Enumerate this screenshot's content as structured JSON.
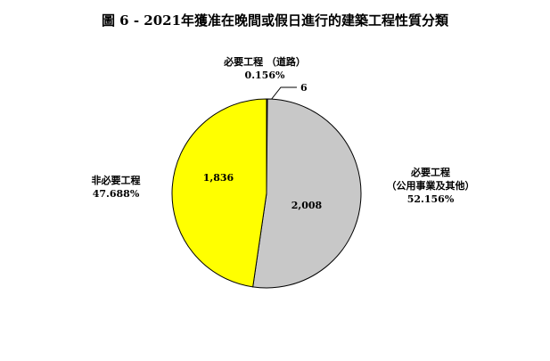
{
  "chart_data": {
    "type": "pie",
    "title": "圖 6 - 2021年獲准在晚間或假日進行的建築工程性質分類",
    "slices": [
      {
        "label": "必要工程 （道路）",
        "label_lines": [
          "必要工程 （道路）"
        ],
        "value": 6,
        "value_label": "6",
        "percent": "0.156%",
        "color": "#ffffff"
      },
      {
        "label": "必要工程（公用事業及其他）",
        "label_lines": [
          "必要工程",
          "（公用事業及其他）"
        ],
        "value": 2008,
        "value_label": "2,008",
        "percent": "52.156%",
        "color": "#c8c8c8"
      },
      {
        "label": "非必要工程",
        "label_lines": [
          "非必要工程"
        ],
        "value": 1836,
        "value_label": "1,836",
        "percent": "47.688%",
        "color": "#ffff00"
      }
    ],
    "start_angle": "top",
    "direction": "clockwise",
    "legend": "none"
  }
}
